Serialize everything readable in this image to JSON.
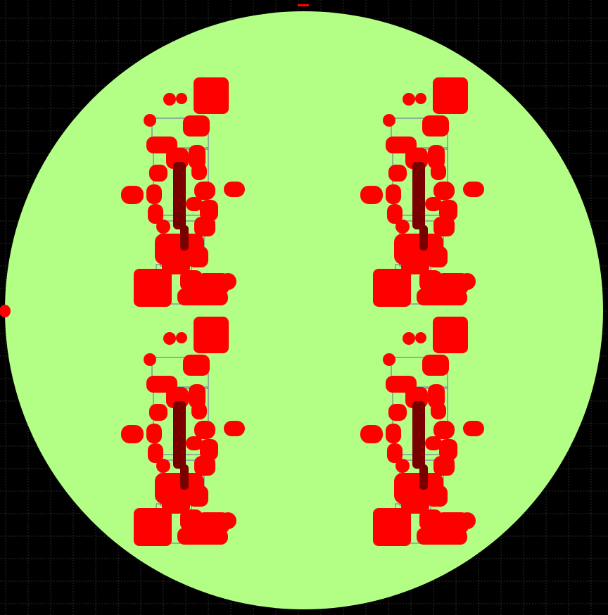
{
  "viewer": {
    "background_color": "#000000",
    "grid_color": "#2a2a2a",
    "grid_visible": true
  },
  "wafer": {
    "fill_color": "#b3ff85"
  },
  "die_array": {
    "rows": 2,
    "columns": 2,
    "die_count": 4,
    "pad_color": "#ff0000",
    "trench_color": "#7a0000",
    "outline_color": "#6666aa"
  },
  "markers": [
    {
      "name": "top-marker",
      "shape": "bar"
    },
    {
      "name": "left-marker",
      "shape": "dot"
    }
  ]
}
